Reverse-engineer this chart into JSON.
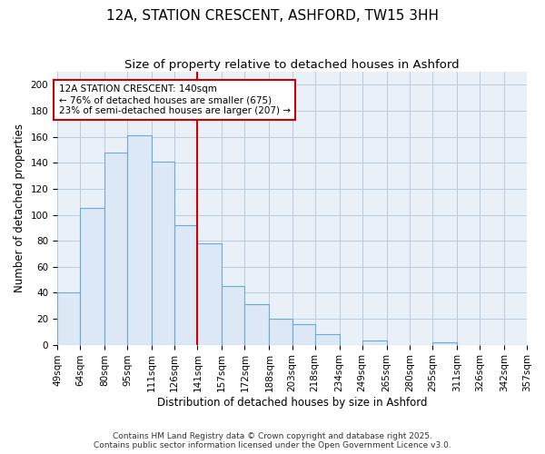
{
  "title_line1": "12A, STATION CRESCENT, ASHFORD, TW15 3HH",
  "title_line2": "Size of property relative to detached houses in Ashford",
  "xlabel": "Distribution of detached houses by size in Ashford",
  "ylabel": "Number of detached properties",
  "bin_edges": [
    49,
    64,
    80,
    95,
    111,
    126,
    141,
    157,
    172,
    188,
    203,
    218,
    234,
    249,
    265,
    280,
    295,
    311,
    326,
    342,
    357
  ],
  "bar_heights": [
    40,
    105,
    148,
    161,
    141,
    92,
    78,
    45,
    31,
    20,
    16,
    8,
    0,
    3,
    0,
    0,
    2,
    0,
    0,
    0
  ],
  "bar_color": "#dce8f5",
  "bar_edgecolor": "#6aaad4",
  "redline_x": 141,
  "redline_color": "#cc0000",
  "annotation_text": "12A STATION CRESCENT: 140sqm\n← 76% of detached houses are smaller (675)\n23% of semi-detached houses are larger (207) →",
  "annotation_box_edgecolor": "#cc0000",
  "annotation_fontsize": 7.5,
  "ylim": [
    0,
    210
  ],
  "yticks": [
    0,
    20,
    40,
    60,
    80,
    100,
    120,
    140,
    160,
    180,
    200
  ],
  "grid_color": "#b8cce0",
  "bg_color": "#eaf0f8",
  "footer_text": "Contains HM Land Registry data © Crown copyright and database right 2025.\nContains public sector information licensed under the Open Government Licence v3.0.",
  "title_fontsize": 11,
  "subtitle_fontsize": 9.5,
  "axis_label_fontsize": 8.5,
  "tick_fontsize": 7.5
}
